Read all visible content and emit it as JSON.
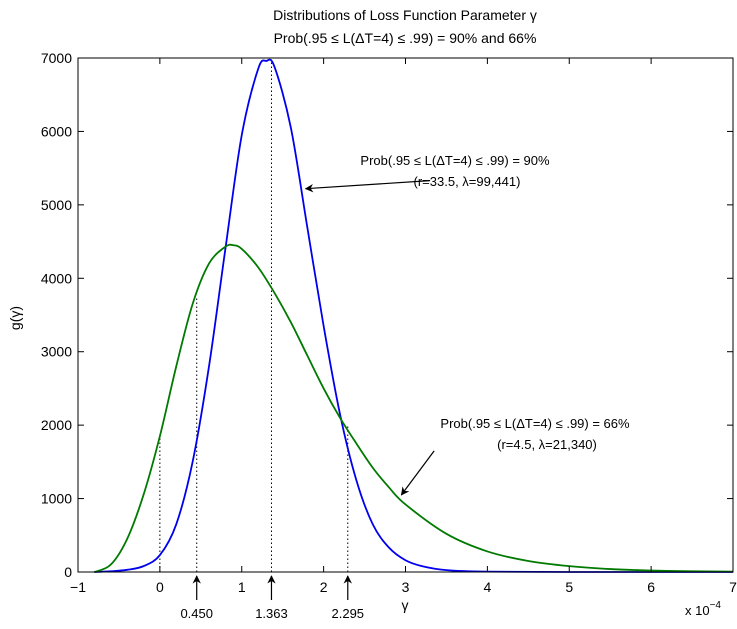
{
  "chart_data": {
    "type": "line",
    "title": "Distributions of Loss Function Parameter γ",
    "subtitle": "Prob(.95 ≤ L(ΔT=4) ≤ .99) = 90% and 66%",
    "xlabel": "γ",
    "ylabel": "g(γ)",
    "x_multiplier_label": "x 10",
    "x_multiplier_exponent": "−4",
    "xlim": [
      -1,
      7
    ],
    "ylim": [
      0,
      7000
    ],
    "x_ticks": [
      -1,
      0,
      1,
      2,
      3,
      4,
      5,
      6,
      7
    ],
    "x_tick_labels": [
      "−1",
      "0",
      "1",
      "2",
      "3",
      "4",
      "5",
      "6",
      "7"
    ],
    "y_ticks": [
      0,
      1000,
      2000,
      3000,
      4000,
      5000,
      6000,
      7000
    ],
    "y_tick_labels": [
      "0",
      "1000",
      "2000",
      "3000",
      "4000",
      "5000",
      "6000",
      "7000"
    ],
    "series": [
      {
        "color": "#0000ee",
        "x": [
          -0.8,
          -0.6,
          -0.4,
          -0.2,
          0.0,
          0.2,
          0.4,
          0.6,
          0.8,
          1.0,
          1.2,
          1.3,
          1.4,
          1.6,
          1.8,
          2.0,
          2.2,
          2.4,
          2.6,
          2.8,
          3.0,
          3.2,
          3.5,
          4.0,
          5.0,
          7.0
        ],
        "y": [
          0,
          10,
          30,
          80,
          230,
          650,
          1500,
          2800,
          4400,
          5950,
          6850,
          6960,
          6880,
          6050,
          4700,
          3350,
          2150,
          1250,
          650,
          330,
          160,
          80,
          25,
          5,
          0,
          0
        ]
      },
      {
        "color": "#007a00",
        "x": [
          -0.8,
          -0.6,
          -0.4,
          -0.2,
          0.0,
          0.2,
          0.4,
          0.6,
          0.8,
          0.9,
          1.0,
          1.2,
          1.4,
          1.6,
          1.8,
          2.0,
          2.2,
          2.4,
          2.6,
          2.8,
          3.0,
          3.5,
          4.0,
          4.5,
          5.0,
          5.5,
          6.0,
          6.5,
          7.0
        ],
        "y": [
          0,
          100,
          450,
          1050,
          1850,
          2800,
          3650,
          4200,
          4430,
          4450,
          4400,
          4150,
          3800,
          3400,
          2950,
          2500,
          2100,
          1750,
          1420,
          1150,
          920,
          520,
          280,
          150,
          80,
          40,
          20,
          10,
          5
        ]
      }
    ],
    "reference_lines": [
      {
        "x": 0.0,
        "y": 1850,
        "series": 1
      },
      {
        "x": 0.45,
        "y": 3750,
        "series": 1
      },
      {
        "x": 1.363,
        "y": 6950,
        "series": 0
      },
      {
        "x": 2.295,
        "y": 2010,
        "series": 0
      }
    ],
    "marker_labels": [
      {
        "x": 0.45,
        "text": "0.450"
      },
      {
        "x": 1.363,
        "text": "1.363"
      },
      {
        "x": 2.295,
        "text": "2.295"
      }
    ],
    "annotations": [
      {
        "line1": "Prob(.95 ≤ L(ΔT=4) ≤ .99) = 90%",
        "line2": "(r=33.5, λ=99,441)",
        "arrow_from": [
          3.3,
          5330
        ],
        "arrow_to": [
          1.78,
          5220
        ]
      },
      {
        "line1": "Prob(.95 ≤ L(ΔT=4) ≤ .99) = 66%",
        "line2": "(r=4.5, λ=21,340)",
        "arrow_from": [
          3.35,
          1650
        ],
        "arrow_to": [
          2.95,
          1050
        ]
      }
    ]
  }
}
